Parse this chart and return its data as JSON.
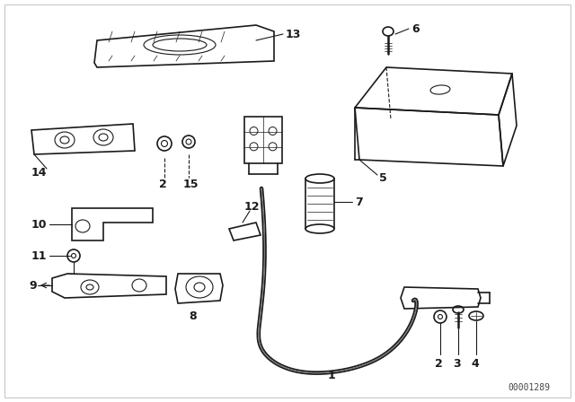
{
  "bg_color": "#ffffff",
  "line_color": "#1a1a1a",
  "fig_width": 6.4,
  "fig_height": 4.48,
  "dpi": 100,
  "part_number": "00001289",
  "border_color": "#cccccc"
}
